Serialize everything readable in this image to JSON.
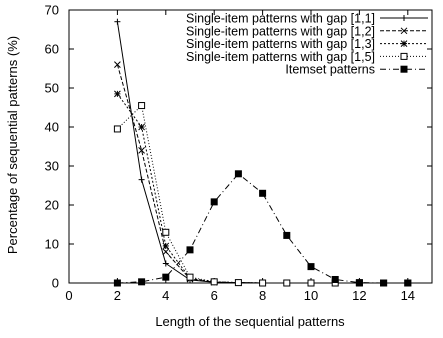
{
  "chart_data": {
    "type": "line",
    "title": "",
    "xlabel": "Length of the sequential patterns",
    "ylabel": "Percentage of sequential patterns (%)",
    "xlim": [
      0,
      15
    ],
    "ylim": [
      0,
      70
    ],
    "xticks": [
      0,
      2,
      4,
      6,
      8,
      10,
      12,
      14
    ],
    "yticks": [
      0,
      10,
      20,
      30,
      40,
      50,
      60,
      70
    ],
    "grid": false,
    "legend_position": "top-right",
    "series": [
      {
        "name": "Single-item patterns with gap [1,1]",
        "marker": "plus",
        "dash": "solid",
        "x": [
          2,
          3,
          4,
          5,
          6,
          7,
          8,
          9,
          10,
          11,
          12,
          13,
          14
        ],
        "y": [
          67,
          26.5,
          5,
          0.8,
          0.2,
          0.1,
          0,
          0,
          0,
          0,
          0,
          0,
          0
        ]
      },
      {
        "name": "Single-item patterns with gap [1,2]",
        "marker": "cross",
        "dash": "dashed",
        "x": [
          2,
          3,
          4,
          5,
          6,
          7,
          8,
          9,
          10,
          11,
          12,
          13,
          14
        ],
        "y": [
          56,
          34,
          8,
          1,
          0.2,
          0.1,
          0,
          0,
          0,
          0,
          0,
          0,
          0
        ]
      },
      {
        "name": "Single-item patterns with gap [1,3]",
        "marker": "star",
        "dash": "dotted",
        "x": [
          2,
          3,
          4,
          5,
          6,
          7,
          8,
          9,
          10,
          11,
          12,
          13,
          14
        ],
        "y": [
          48.5,
          40,
          9.5,
          1.2,
          0.3,
          0.1,
          0,
          0,
          0,
          0,
          0,
          0,
          0
        ]
      },
      {
        "name": "Single-item patterns with gap [1,5]",
        "marker": "square-open",
        "dash": "fine-dotted",
        "x": [
          2,
          3,
          4,
          5,
          6,
          7,
          8,
          9,
          10,
          11,
          12,
          13,
          14
        ],
        "y": [
          39.5,
          45.5,
          13,
          1.5,
          0.3,
          0.1,
          0,
          0,
          0,
          0,
          0,
          0,
          0
        ]
      },
      {
        "name": "Itemset patterns",
        "marker": "square-filled",
        "dash": "dash-dot",
        "x": [
          2,
          3,
          4,
          5,
          6,
          7,
          8,
          9,
          10,
          11,
          12,
          13,
          14
        ],
        "y": [
          0,
          0.3,
          1.5,
          8.5,
          20.8,
          28,
          23,
          12.2,
          4.2,
          0.9,
          0.1,
          0,
          0
        ]
      }
    ]
  }
}
